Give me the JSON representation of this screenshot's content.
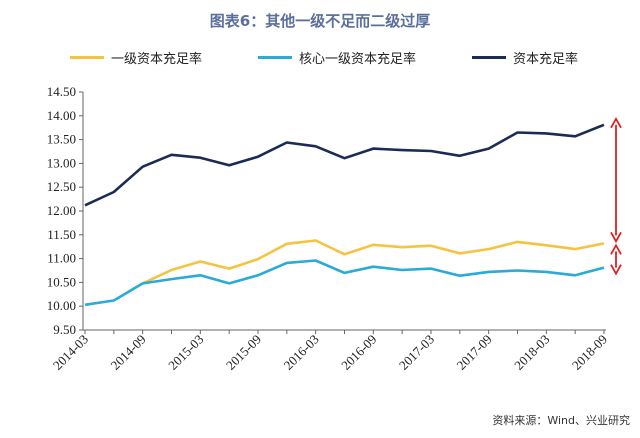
{
  "title": "图表6：其他一级不足而二级过厚",
  "source": "资料来源：Wind、兴业研究",
  "chart_data": {
    "type": "line",
    "title": "图表6：其他一级不足而二级过厚",
    "xlabel": "",
    "ylabel": "",
    "ylim": [
      9.5,
      14.5
    ],
    "yticks": [
      "14.50",
      "14.00",
      "13.50",
      "13.00",
      "12.50",
      "12.00",
      "11.50",
      "11.00",
      "10.50",
      "10.00",
      "9.50"
    ],
    "x_tick_labels": [
      "2014-03",
      "2014-09",
      "2015-03",
      "2015-09",
      "2016-03",
      "2016-09",
      "2017-03",
      "2017-09",
      "2018-03",
      "2018-09"
    ],
    "x": [
      "2014-03",
      "2014-06",
      "2014-09",
      "2014-12",
      "2015-03",
      "2015-06",
      "2015-09",
      "2015-12",
      "2016-03",
      "2016-06",
      "2016-09",
      "2016-12",
      "2017-03",
      "2017-06",
      "2017-09",
      "2017-12",
      "2018-03",
      "2018-06",
      "2018-09"
    ],
    "legend_position": "top",
    "grid": false,
    "series": [
      {
        "name": "一级资本充足率",
        "color": "#f5c342",
        "values": [
          null,
          null,
          10.48,
          10.76,
          10.94,
          10.79,
          10.99,
          11.31,
          11.38,
          11.09,
          11.29,
          11.24,
          11.27,
          11.11,
          11.2,
          11.35,
          11.28,
          11.2,
          11.32
        ]
      },
      {
        "name": "核心一级资本充足率",
        "color": "#2aaad8",
        "values": [
          10.03,
          10.12,
          10.48,
          10.57,
          10.65,
          10.48,
          10.65,
          10.91,
          10.96,
          10.7,
          10.83,
          10.76,
          10.79,
          10.64,
          10.72,
          10.75,
          10.72,
          10.65,
          10.81
        ]
      },
      {
        "name": "资本充足率",
        "color": "#1a2b55",
        "values": [
          12.12,
          12.4,
          12.93,
          13.18,
          13.12,
          12.96,
          13.14,
          13.44,
          13.36,
          13.11,
          13.31,
          13.28,
          13.26,
          13.16,
          13.31,
          13.65,
          13.63,
          13.57,
          13.81
        ]
      }
    ],
    "annotations": {
      "arrow_color": "#e02020"
    }
  }
}
